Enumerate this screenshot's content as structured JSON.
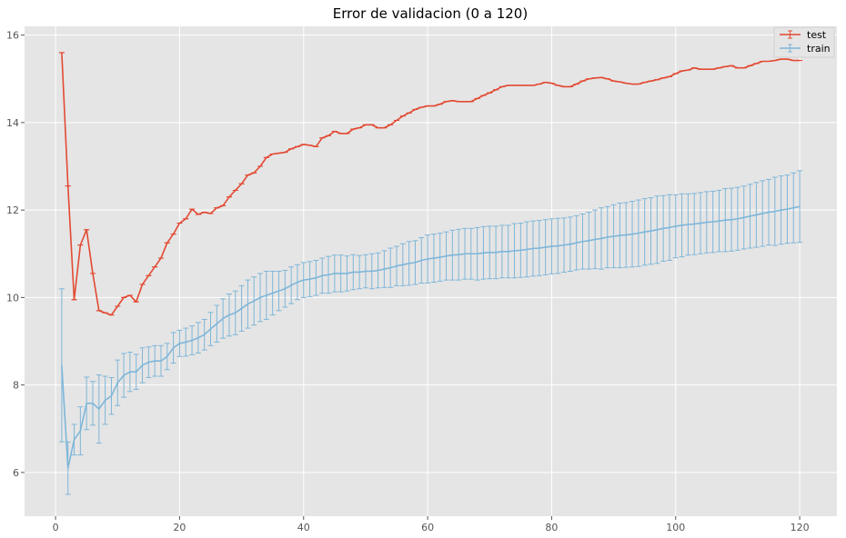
{
  "chart_data": {
    "type": "line",
    "title": "Error de validacion (0 a 120)",
    "xlabel": "",
    "ylabel": "",
    "xlim": [
      -5,
      126
    ],
    "ylim": [
      5.0,
      16.2
    ],
    "x_ticks": [
      0,
      20,
      40,
      60,
      80,
      100,
      120
    ],
    "y_ticks": [
      6,
      8,
      10,
      12,
      14,
      16
    ],
    "grid": true,
    "legend_position": "top-right",
    "x": [
      1,
      2,
      3,
      4,
      5,
      6,
      7,
      8,
      9,
      10,
      11,
      12,
      13,
      14,
      15,
      16,
      17,
      18,
      19,
      20,
      21,
      22,
      23,
      24,
      25,
      26,
      27,
      28,
      29,
      30,
      31,
      32,
      33,
      34,
      35,
      36,
      37,
      38,
      39,
      40,
      41,
      42,
      43,
      44,
      45,
      46,
      47,
      48,
      49,
      50,
      51,
      52,
      53,
      54,
      55,
      56,
      57,
      58,
      59,
      60,
      61,
      62,
      63,
      64,
      65,
      66,
      67,
      68,
      69,
      70,
      71,
      72,
      73,
      74,
      75,
      76,
      77,
      78,
      79,
      80,
      81,
      82,
      83,
      84,
      85,
      86,
      87,
      88,
      89,
      90,
      91,
      92,
      93,
      94,
      95,
      96,
      97,
      98,
      99,
      100,
      101,
      102,
      103,
      104,
      105,
      106,
      107,
      108,
      109,
      110,
      111,
      112,
      113,
      114,
      115,
      116,
      117,
      118,
      119,
      120
    ],
    "series": [
      {
        "name": "test",
        "color": "#e24a33",
        "values": [
          15.6,
          12.55,
          9.95,
          11.2,
          11.55,
          10.55,
          9.7,
          9.65,
          9.6,
          9.8,
          10.0,
          10.05,
          9.9,
          10.3,
          10.5,
          10.7,
          10.9,
          11.25,
          11.45,
          11.7,
          11.8,
          12.02,
          11.9,
          11.95,
          11.92,
          12.05,
          12.1,
          12.3,
          12.45,
          12.6,
          12.8,
          12.85,
          13.0,
          13.2,
          13.28,
          13.3,
          13.32,
          13.4,
          13.45,
          13.5,
          13.48,
          13.45,
          13.65,
          13.7,
          13.8,
          13.75,
          13.75,
          13.85,
          13.88,
          13.95,
          13.95,
          13.88,
          13.88,
          13.95,
          14.05,
          14.15,
          14.22,
          14.3,
          14.35,
          14.38,
          14.38,
          14.42,
          14.48,
          14.5,
          14.48,
          14.48,
          14.48,
          14.55,
          14.62,
          14.68,
          14.75,
          14.82,
          14.85,
          14.85,
          14.85,
          14.85,
          14.85,
          14.88,
          14.92,
          14.9,
          14.85,
          14.82,
          14.82,
          14.88,
          14.95,
          15.0,
          15.02,
          15.03,
          15.0,
          14.95,
          14.93,
          14.9,
          14.88,
          14.88,
          14.92,
          14.95,
          14.98,
          15.02,
          15.05,
          15.12,
          15.18,
          15.2,
          15.25,
          15.22,
          15.22,
          15.22,
          15.25,
          15.28,
          15.3,
          15.25,
          15.25,
          15.3,
          15.35,
          15.4,
          15.4,
          15.42,
          15.45,
          15.45,
          15.42,
          15.42
        ],
        "errors": [
          0.0,
          0.0,
          0.0,
          0.0,
          0.0,
          0.0,
          0.0,
          0.0,
          0.0,
          0.0,
          0.0,
          0.0,
          0.0,
          0.0,
          0.0,
          0.0,
          0.0,
          0.0,
          0.0,
          0.0,
          0.0,
          0.0,
          0.0,
          0.0,
          0.0,
          0.0,
          0.0,
          0.0,
          0.0,
          0.0,
          0.0,
          0.0,
          0.0,
          0.0,
          0.0,
          0.0,
          0.0,
          0.0,
          0.0,
          0.0,
          0.0,
          0.0,
          0.0,
          0.0,
          0.0,
          0.0,
          0.0,
          0.0,
          0.0,
          0.0,
          0.0,
          0.0,
          0.0,
          0.0,
          0.0,
          0.0,
          0.0,
          0.0,
          0.0,
          0.0,
          0.0,
          0.0,
          0.0,
          0.0,
          0.0,
          0.0,
          0.0,
          0.0,
          0.0,
          0.0,
          0.0,
          0.0,
          0.0,
          0.0,
          0.0,
          0.0,
          0.0,
          0.0,
          0.0,
          0.0,
          0.0,
          0.0,
          0.0,
          0.0,
          0.0,
          0.0,
          0.0,
          0.0,
          0.0,
          0.0,
          0.0,
          0.0,
          0.0,
          0.0,
          0.0,
          0.0,
          0.0,
          0.0,
          0.0,
          0.0,
          0.0,
          0.0,
          0.0,
          0.0,
          0.0,
          0.0,
          0.0,
          0.0,
          0.0,
          0.0,
          0.0,
          0.0,
          0.0,
          0.0,
          0.0,
          0.0,
          0.0,
          0.0,
          0.0,
          0.0
        ]
      },
      {
        "name": "train",
        "color": "#7eb6d9",
        "values": [
          8.45,
          6.1,
          6.75,
          6.95,
          7.58,
          7.58,
          7.45,
          7.65,
          7.75,
          8.05,
          8.22,
          8.3,
          8.3,
          8.45,
          8.52,
          8.55,
          8.55,
          8.65,
          8.85,
          8.95,
          8.98,
          9.02,
          9.08,
          9.15,
          9.28,
          9.4,
          9.52,
          9.6,
          9.65,
          9.75,
          9.85,
          9.92,
          10.0,
          10.05,
          10.1,
          10.15,
          10.2,
          10.28,
          10.35,
          10.4,
          10.42,
          10.45,
          10.5,
          10.52,
          10.55,
          10.55,
          10.55,
          10.58,
          10.58,
          10.6,
          10.6,
          10.62,
          10.65,
          10.68,
          10.72,
          10.75,
          10.78,
          10.8,
          10.85,
          10.88,
          10.9,
          10.92,
          10.95,
          10.97,
          10.98,
          11.0,
          11.0,
          11.0,
          11.02,
          11.03,
          11.03,
          11.05,
          11.05,
          11.07,
          11.08,
          11.1,
          11.12,
          11.13,
          11.15,
          11.17,
          11.18,
          11.2,
          11.22,
          11.25,
          11.28,
          11.3,
          11.33,
          11.35,
          11.38,
          11.4,
          11.42,
          11.43,
          11.45,
          11.47,
          11.5,
          11.52,
          11.55,
          11.58,
          11.6,
          11.63,
          11.65,
          11.67,
          11.68,
          11.7,
          11.72,
          11.73,
          11.75,
          11.77,
          11.78,
          11.8,
          11.83,
          11.86,
          11.89,
          11.92,
          11.95,
          11.97,
          12.0,
          12.02,
          12.05,
          12.08
        ],
        "errors": [
          1.75,
          0.6,
          0.35,
          0.55,
          0.6,
          0.5,
          0.78,
          0.55,
          0.42,
          0.52,
          0.5,
          0.45,
          0.4,
          0.4,
          0.35,
          0.35,
          0.35,
          0.3,
          0.35,
          0.3,
          0.32,
          0.33,
          0.35,
          0.35,
          0.38,
          0.42,
          0.45,
          0.48,
          0.5,
          0.52,
          0.55,
          0.55,
          0.55,
          0.55,
          0.5,
          0.45,
          0.42,
          0.42,
          0.4,
          0.4,
          0.4,
          0.4,
          0.4,
          0.42,
          0.42,
          0.42,
          0.4,
          0.4,
          0.38,
          0.38,
          0.4,
          0.4,
          0.42,
          0.45,
          0.45,
          0.48,
          0.5,
          0.5,
          0.52,
          0.55,
          0.55,
          0.55,
          0.55,
          0.57,
          0.58,
          0.58,
          0.58,
          0.6,
          0.6,
          0.6,
          0.6,
          0.6,
          0.6,
          0.62,
          0.62,
          0.63,
          0.63,
          0.63,
          0.63,
          0.63,
          0.63,
          0.62,
          0.62,
          0.62,
          0.63,
          0.65,
          0.67,
          0.7,
          0.7,
          0.72,
          0.74,
          0.74,
          0.75,
          0.76,
          0.76,
          0.76,
          0.77,
          0.75,
          0.75,
          0.72,
          0.72,
          0.7,
          0.7,
          0.7,
          0.7,
          0.7,
          0.7,
          0.72,
          0.72,
          0.72,
          0.72,
          0.73,
          0.74,
          0.75,
          0.75,
          0.78,
          0.78,
          0.78,
          0.8,
          0.82
        ]
      }
    ]
  }
}
